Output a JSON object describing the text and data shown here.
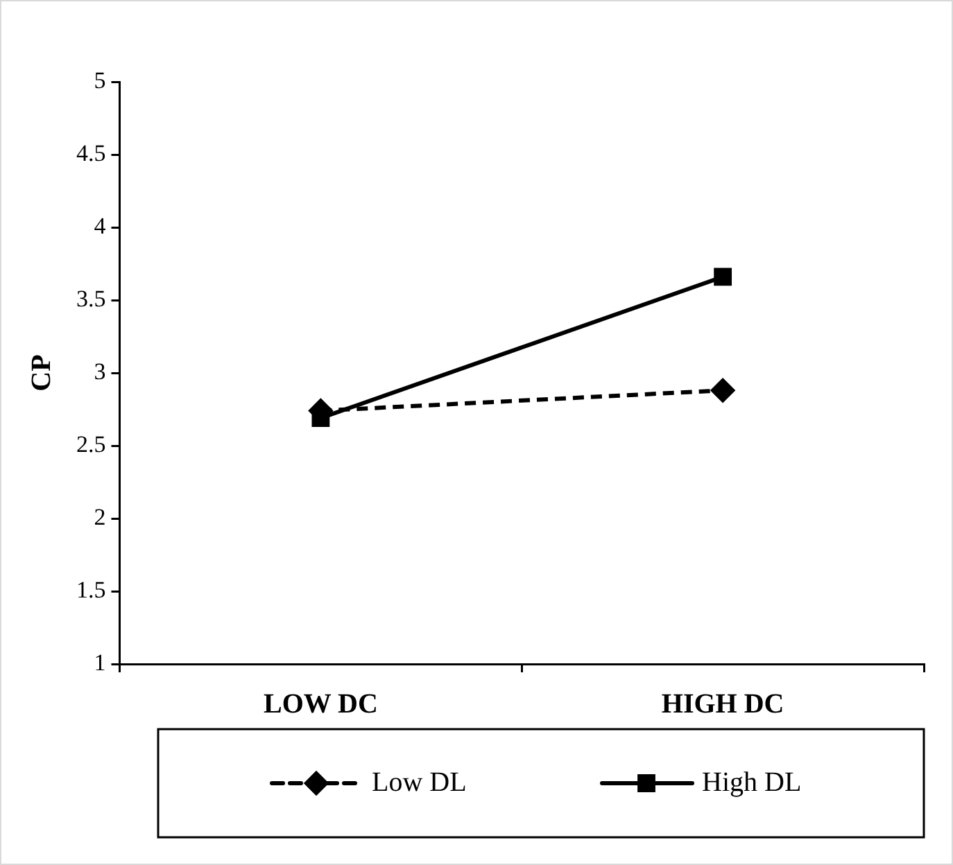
{
  "chart_data": {
    "type": "line",
    "ylabel": "CP",
    "categories": [
      "LOW DC",
      "HIGH DC"
    ],
    "series": [
      {
        "name": "Low DL",
        "color": "#000000",
        "values": [
          2.74,
          2.88
        ],
        "marker": "diamond",
        "line_style": "dashed"
      },
      {
        "name": "High DL",
        "color": "#000000",
        "values": [
          2.69,
          3.66
        ],
        "marker": "square",
        "line_style": "solid"
      }
    ],
    "ylim": [
      1,
      5
    ],
    "yticks": [
      1,
      1.5,
      2,
      2.5,
      3,
      3.5,
      4,
      4.5,
      5
    ],
    "grid": false,
    "legend": "bottom"
  }
}
